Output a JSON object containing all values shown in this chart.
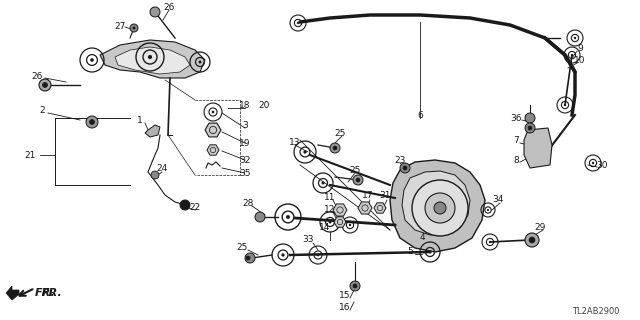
{
  "bg_color": "#ffffff",
  "line_color": "#1a1a1a",
  "diagram_code": "TL2AB2900",
  "fr_label": "FR.",
  "figsize": [
    6.4,
    3.2
  ],
  "dpi": 100,
  "xlim": [
    0,
    640
  ],
  "ylim": [
    0,
    320
  ]
}
